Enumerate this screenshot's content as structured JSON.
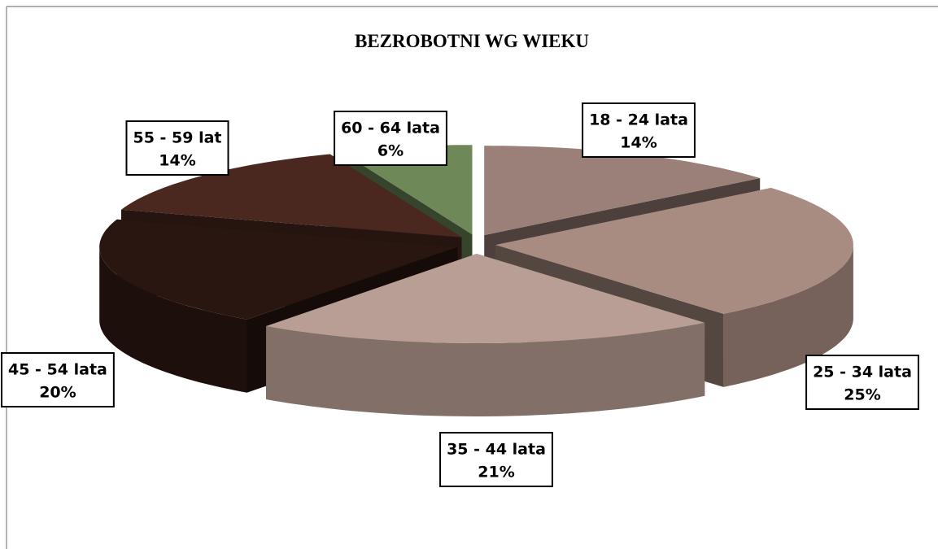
{
  "chart_data": {
    "type": "pie",
    "title": "BEZROBOTNI WG WIEKU",
    "categories": [
      "18 - 24 lata",
      "25 - 34 lata",
      "35 - 44 lata",
      "45 - 54 lata",
      "55 - 59 lat",
      "60 - 64 lata"
    ],
    "values": [
      14,
      25,
      21,
      20,
      14,
      6
    ],
    "value_labels": [
      "14%",
      "25%",
      "21%",
      "20%",
      "14%",
      "6%"
    ],
    "colors": [
      "#9a8078",
      "#a88c82",
      "#b89e94",
      "#2a1610",
      "#4a2820",
      "#6e8858"
    ]
  }
}
